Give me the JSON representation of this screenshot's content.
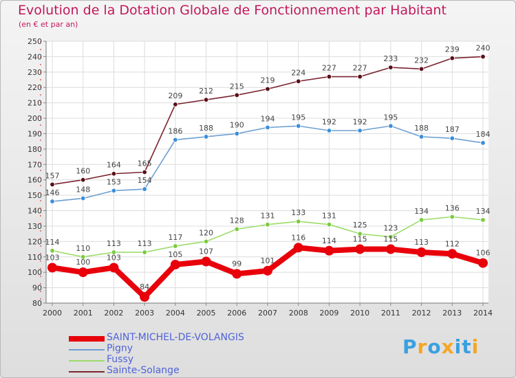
{
  "title": "Evolution de la Dotation Globale de Fonctionnement par Habitant",
  "subtitle": "(en € et par an)",
  "brand": {
    "letters": [
      "P",
      "r",
      "o",
      "x",
      "i",
      "t",
      "i"
    ],
    "colors": [
      "#3aa0e0",
      "#f5a623",
      "#3aa0e0",
      "#f5a623",
      "#3aa0e0",
      "#3aa0e0",
      "#f5a623"
    ]
  },
  "chart_data": {
    "type": "line",
    "title": "Evolution de la Dotation Globale de Fonctionnement par Habitant",
    "subtitle": "(en € et par an)",
    "x": [
      "2000",
      "2001",
      "2002",
      "2003",
      "2004",
      "2005",
      "2006",
      "2007",
      "2008",
      "2009",
      "2010",
      "2011",
      "2012",
      "2013",
      "2014"
    ],
    "ylim": [
      80,
      250
    ],
    "yticks": [
      80,
      90,
      100,
      110,
      120,
      130,
      140,
      150,
      160,
      170,
      180,
      190,
      200,
      210,
      220,
      230,
      240,
      250
    ],
    "grid": true,
    "legend_position": "bottom-left",
    "series": [
      {
        "name": "SAINT-MICHEL-DE-VOLANGIS",
        "color": "#e8000b",
        "marker": "#e8000b",
        "thick": true,
        "values": [
          103,
          100,
          103,
          84,
          105,
          107,
          99,
          101,
          116,
          114,
          115,
          115,
          113,
          112,
          106
        ]
      },
      {
        "name": "Pigny",
        "color": "#6e9fd2",
        "marker": "#3b8fd9",
        "thick": false,
        "values": [
          146,
          148,
          153,
          154,
          186,
          188,
          190,
          194,
          195,
          192,
          192,
          195,
          188,
          187,
          184
        ]
      },
      {
        "name": "Fussy",
        "color": "#9ddc6a",
        "marker": "#7acb3f",
        "thick": false,
        "values": [
          114,
          110,
          113,
          113,
          117,
          120,
          128,
          131,
          133,
          131,
          125,
          123,
          134,
          136,
          134
        ]
      },
      {
        "name": "Sainte-Solange",
        "color": "#7a2430",
        "marker": "#5a0f17",
        "thick": false,
        "values": [
          157,
          160,
          164,
          165,
          209,
          212,
          215,
          219,
          224,
          227,
          227,
          233,
          232,
          239,
          240
        ]
      }
    ]
  }
}
